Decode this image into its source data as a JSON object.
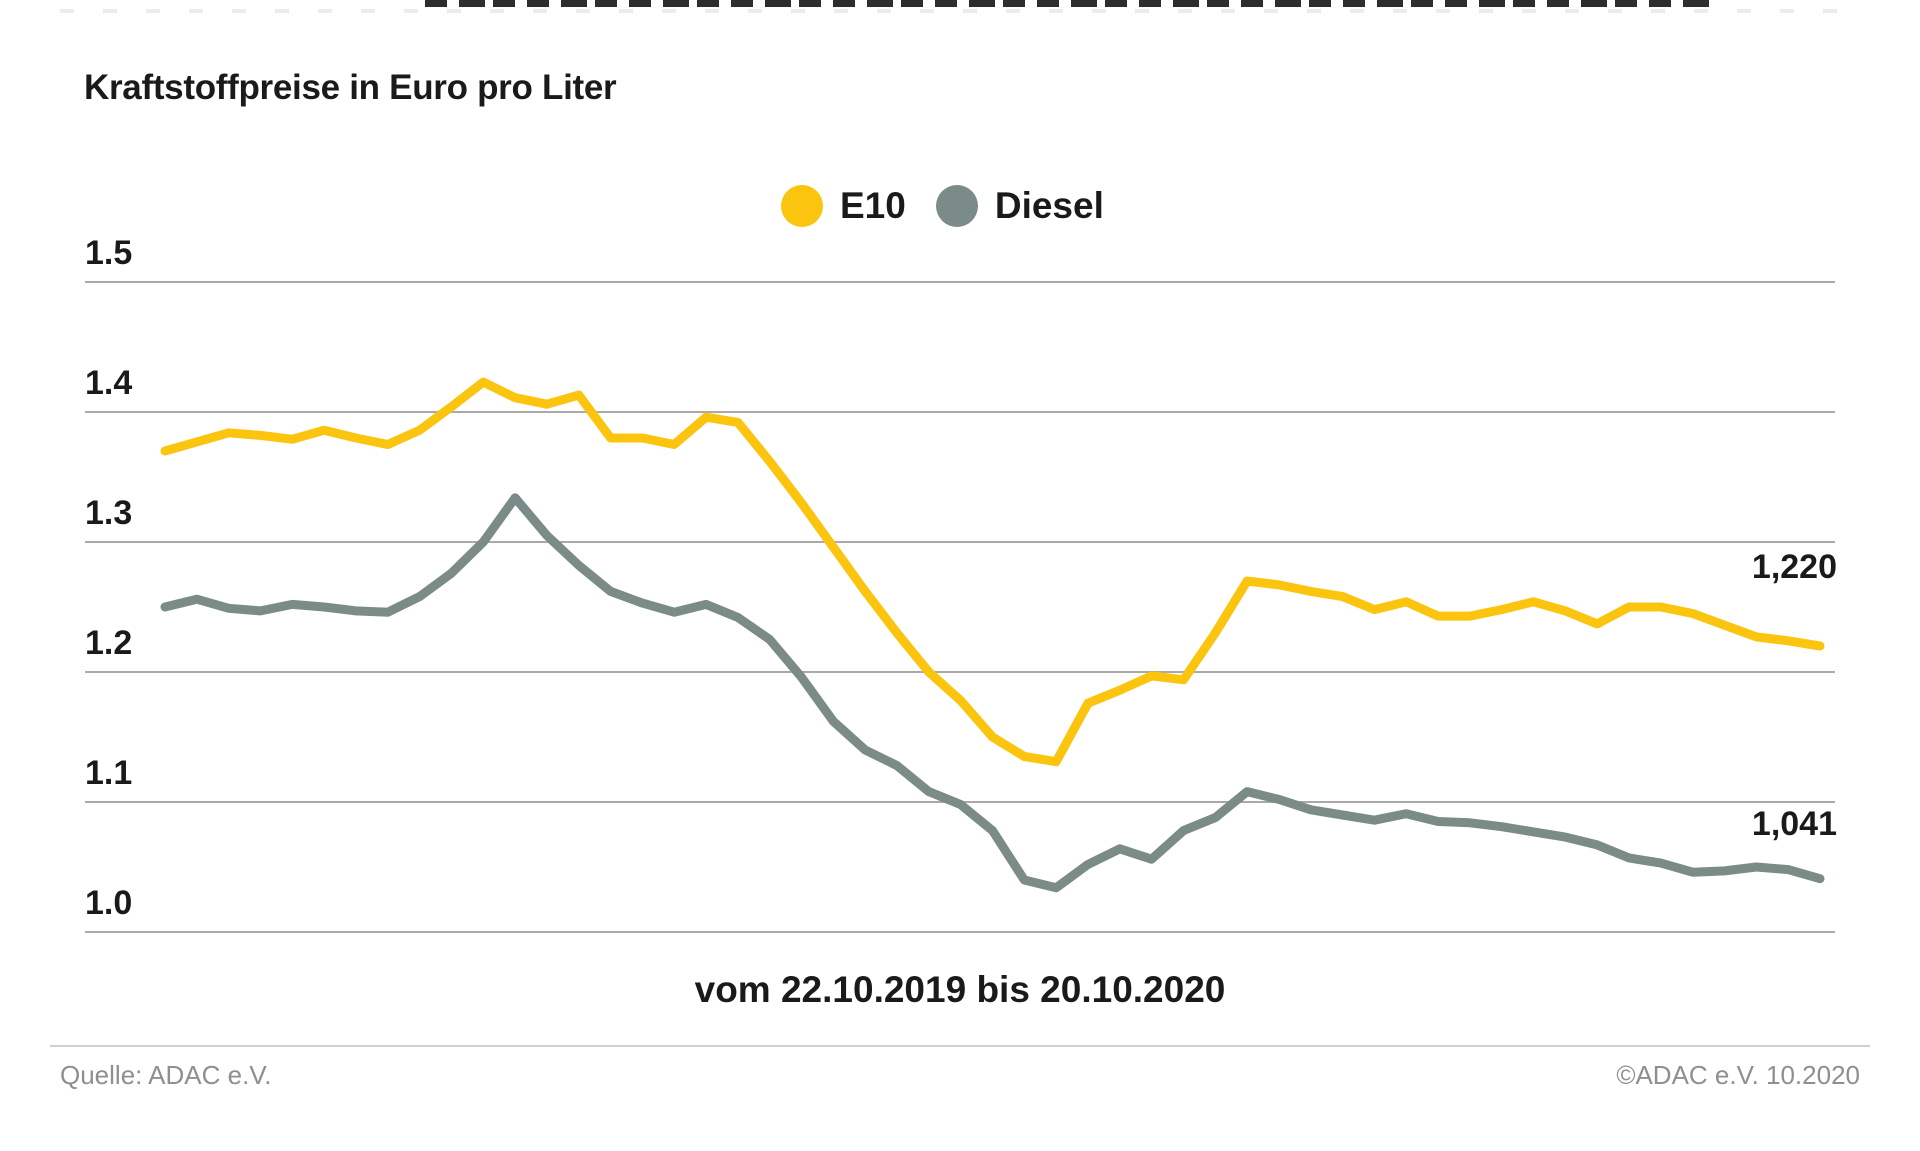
{
  "title": "Kraftstoffpreise in Euro pro Liter",
  "legend": {
    "e10_label": "E10",
    "diesel_label": "Diesel"
  },
  "colors": {
    "e10": "#fbc40f",
    "diesel": "#7b8b87",
    "gridline": "#a9a9a9",
    "text": "#1a1a1a",
    "footer_text": "#8f8f8f"
  },
  "chart_data": {
    "type": "line",
    "title": "Kraftstoffpreise in Euro pro Liter",
    "xlabel": "vom 22.10.2019 bis 20.10.2020",
    "ylabel": "Euro pro Liter",
    "ylim": [
      0.97,
      1.52
    ],
    "grid": true,
    "legend_position": "top-center",
    "period": {
      "from": "22.10.2019",
      "to": "20.10.2020",
      "interval": "weekly"
    },
    "y_ticks": [
      {
        "label": "1.5",
        "value": 1.5
      },
      {
        "label": "1.4",
        "value": 1.4
      },
      {
        "label": "1.3",
        "value": 1.3
      },
      {
        "label": "1.2",
        "value": 1.2
      },
      {
        "label": "1.1",
        "value": 1.1
      },
      {
        "label": "1.0",
        "value": 1.0
      }
    ],
    "series": [
      {
        "name": "E10",
        "color": "#fbc40f",
        "end_label": "1,220",
        "end_value": 1.22,
        "values": [
          1.37,
          1.377,
          1.384,
          1.382,
          1.379,
          1.386,
          1.38,
          1.375,
          1.386,
          1.404,
          1.423,
          1.411,
          1.406,
          1.413,
          1.38,
          1.38,
          1.375,
          1.396,
          1.392,
          1.362,
          1.33,
          1.296,
          1.262,
          1.23,
          1.2,
          1.178,
          1.15,
          1.135,
          1.131,
          1.176,
          1.186,
          1.197,
          1.194,
          1.23,
          1.27,
          1.267,
          1.262,
          1.258,
          1.248,
          1.254,
          1.243,
          1.243,
          1.248,
          1.254,
          1.247,
          1.237,
          1.25,
          1.25,
          1.245,
          1.236,
          1.227,
          1.224,
          1.22
        ]
      },
      {
        "name": "Diesel",
        "color": "#7b8b87",
        "end_label": "1,041",
        "end_value": 1.041,
        "values": [
          1.25,
          1.256,
          1.249,
          1.247,
          1.252,
          1.25,
          1.247,
          1.246,
          1.258,
          1.276,
          1.3,
          1.334,
          1.305,
          1.282,
          1.262,
          1.253,
          1.246,
          1.252,
          1.242,
          1.225,
          1.196,
          1.162,
          1.14,
          1.128,
          1.108,
          1.098,
          1.078,
          1.04,
          1.034,
          1.052,
          1.064,
          1.056,
          1.078,
          1.088,
          1.108,
          1.102,
          1.094,
          1.09,
          1.086,
          1.091,
          1.085,
          1.084,
          1.081,
          1.077,
          1.073,
          1.067,
          1.057,
          1.053,
          1.046,
          1.047,
          1.05,
          1.048,
          1.041
        ]
      }
    ]
  },
  "caption": "vom 22.10.2019 bis 20.10.2020",
  "footer": {
    "source": "Quelle: ADAC e.V.",
    "copyright": "©ADAC e.V. 10.2020"
  }
}
